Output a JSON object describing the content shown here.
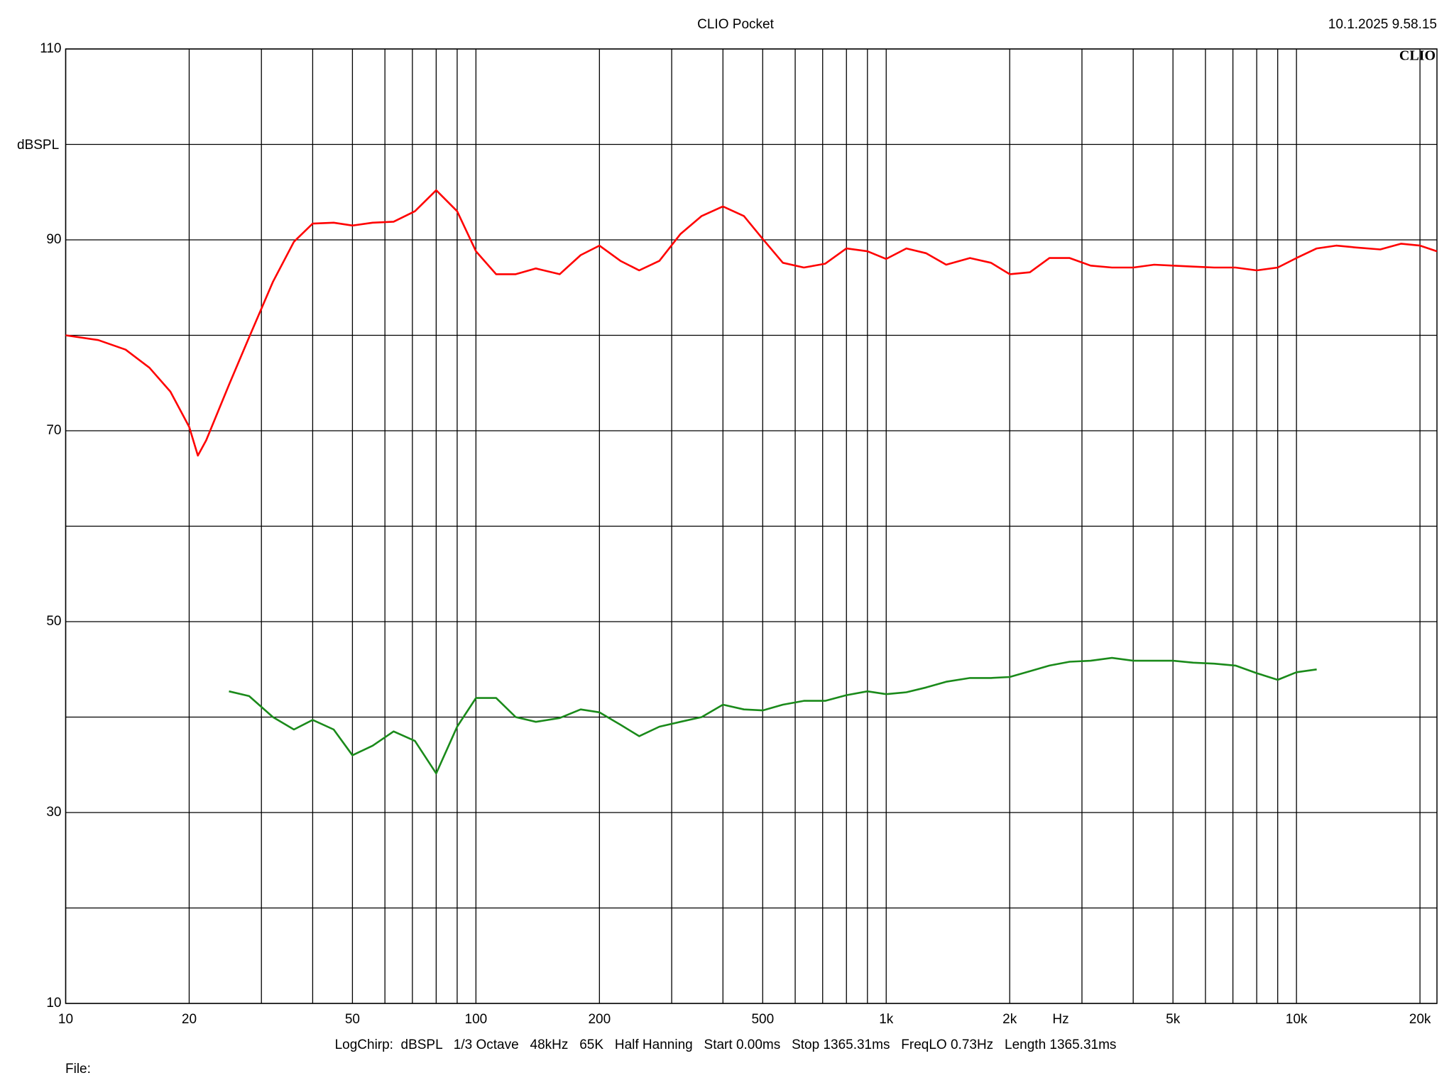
{
  "chart_data": {
    "type": "line",
    "title": "CLIO Pocket",
    "timestamp": "10.1.2025 9.58.15",
    "logo": "CLIO",
    "ylabel": "dBSPL",
    "xlabel": "Hz",
    "footer": "LogChirp:  dBSPL   1/3 Octave   48kHz   65K   Half Hanning   Start 0.00ms   Stop 1365.31ms   FreqLO 0.73Hz   Length 1365.31ms",
    "file_label": "File:",
    "xscale": "log",
    "xlim": [
      10,
      22000
    ],
    "ylim": [
      10,
      110
    ],
    "xticks": [
      10,
      20,
      50,
      100,
      200,
      500,
      {
        "value": 1000,
        "label": "1k"
      },
      {
        "value": 2000,
        "label": "2k"
      },
      {
        "value": 5000,
        "label": "5k"
      },
      {
        "value": 10000,
        "label": "10k"
      },
      {
        "value": 20000,
        "label": "20k"
      }
    ],
    "xgrid": [
      30,
      40,
      60,
      70,
      80,
      90,
      300,
      400,
      600,
      700,
      800,
      900,
      3000,
      4000,
      6000,
      7000,
      8000,
      9000
    ],
    "yticks": [
      10,
      30,
      50,
      70,
      90,
      110
    ],
    "ygrid": [
      20,
      40,
      60,
      80,
      100
    ],
    "grid": true,
    "x": [
      10,
      12,
      14,
      16,
      18,
      20,
      21,
      22,
      25,
      28,
      32,
      36,
      40,
      45,
      50,
      56,
      63,
      71,
      80,
      90,
      100,
      112,
      125,
      140,
      160,
      180,
      200,
      225,
      250,
      280,
      315,
      355,
      400,
      450,
      500,
      560,
      630,
      710,
      800,
      900,
      1000,
      1120,
      1250,
      1400,
      1600,
      1800,
      2000,
      2240,
      2500,
      2800,
      3150,
      3550,
      4000,
      4500,
      5000,
      5600,
      6300,
      7100,
      8000,
      9000,
      10000,
      11200,
      12500,
      14000,
      16000,
      18000,
      20000,
      22000
    ],
    "series": [
      {
        "color": "#ff0000",
        "values": [
          80.0,
          79.5,
          78.5,
          76.6,
          74.1,
          70.4,
          67.4,
          69.0,
          74.8,
          79.8,
          85.6,
          89.8,
          91.7,
          91.8,
          91.5,
          91.8,
          91.9,
          93.0,
          95.2,
          93.0,
          88.8,
          86.4,
          86.4,
          87.0,
          86.4,
          88.4,
          89.4,
          87.8,
          86.8,
          87.8,
          90.6,
          92.5,
          93.5,
          92.5,
          90.1,
          87.6,
          87.1,
          87.5,
          89.1,
          88.8,
          88.0,
          89.1,
          88.6,
          87.4,
          88.1,
          87.6,
          86.4,
          86.6,
          88.1,
          88.1,
          87.3,
          87.1,
          87.1,
          87.4,
          87.3,
          87.2,
          87.1,
          87.1,
          86.8,
          87.1,
          88.1,
          89.1,
          89.4,
          89.2,
          89.0,
          89.6,
          89.4,
          88.8
        ]
      },
      {
        "color": "#1a8a1a",
        "values": [
          null,
          null,
          null,
          null,
          null,
          null,
          null,
          null,
          42.7,
          42.2,
          40.0,
          38.7,
          39.7,
          38.7,
          36.0,
          37.0,
          38.5,
          37.5,
          34.1,
          39.0,
          42.0,
          42.0,
          40.0,
          39.5,
          39.9,
          40.8,
          40.5,
          39.2,
          38.0,
          39.0,
          39.5,
          40.0,
          41.3,
          40.8,
          40.7,
          41.3,
          41.7,
          41.7,
          42.3,
          42.7,
          42.4,
          42.6,
          43.1,
          43.7,
          44.1,
          44.1,
          44.2,
          44.8,
          45.4,
          45.8,
          45.9,
          46.2,
          45.9,
          45.9,
          45.9,
          45.7,
          45.6,
          45.4,
          44.6,
          43.9,
          44.7,
          45.0,
          null,
          null,
          null,
          null,
          null,
          null
        ]
      }
    ]
  }
}
